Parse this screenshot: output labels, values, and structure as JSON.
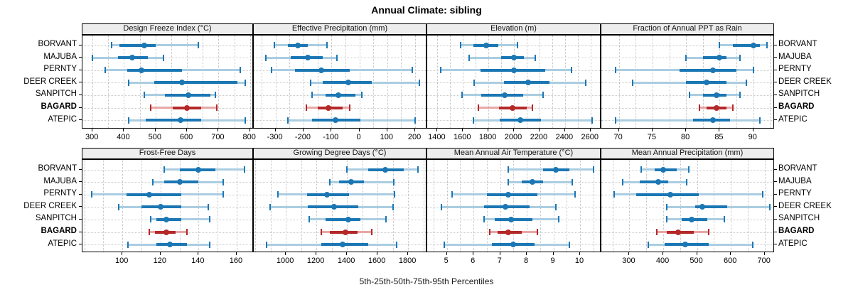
{
  "title": "Annual Climate: sibling",
  "caption": "5th-25th-50th-75th-95th Percentiles",
  "stations": [
    "BORVANT",
    "MAJUBA",
    "PERNTY",
    "DEER CREEK",
    "SANPITCH",
    "BAGARD",
    "ATEPIC"
  ],
  "highlight_station": "BAGARD",
  "colors": {
    "series": "#1b77b4",
    "series_light": "#aacde2",
    "highlight": "#b42828",
    "highlight_light": "#e9a6a6",
    "strip_bg": "#ededed",
    "grid": "#c9c9c9",
    "border": "#000000"
  },
  "chart_data": [
    {
      "type": "dot-interval",
      "title": "Design Freeze Index (°C)",
      "percentiles": [
        5,
        25,
        50,
        75,
        95
      ],
      "xlim": [
        268,
        812
      ],
      "ticks": [
        300,
        400,
        500,
        600,
        700,
        800
      ],
      "minor_step": 50,
      "grid": true,
      "series": [
        {
          "name": "BORVANT",
          "values": [
            360,
            385,
            465,
            500,
            635
          ]
        },
        {
          "name": "MAJUBA",
          "values": [
            300,
            380,
            425,
            475,
            525
          ]
        },
        {
          "name": "PERNTY",
          "values": [
            340,
            410,
            455,
            585,
            770
          ]
        },
        {
          "name": "DEER CREEK",
          "values": [
            415,
            495,
            585,
            760,
            785
          ]
        },
        {
          "name": "SANPITCH",
          "values": [
            465,
            530,
            605,
            675,
            690
          ]
        },
        {
          "name": "BAGARD",
          "values": [
            485,
            555,
            600,
            645,
            695
          ]
        },
        {
          "name": "ATEPIC",
          "values": [
            415,
            470,
            580,
            645,
            785
          ]
        }
      ]
    },
    {
      "type": "dot-interval",
      "title": "Effective Precipitation (mm)",
      "percentiles": [
        5,
        25,
        50,
        75,
        95
      ],
      "xlim": [
        -378,
        243
      ],
      "ticks": [
        -300,
        -200,
        -100,
        0,
        100,
        200
      ],
      "minor_step": 50,
      "grid": true,
      "series": [
        {
          "name": "BORVANT",
          "values": [
            -305,
            -255,
            -220,
            -185,
            -115
          ]
        },
        {
          "name": "MAJUBA",
          "values": [
            -335,
            -245,
            -185,
            -130,
            -80
          ]
        },
        {
          "name": "PERNTY",
          "values": [
            -315,
            -230,
            -135,
            -35,
            190
          ]
        },
        {
          "name": "DEER CREEK",
          "values": [
            -175,
            -130,
            -40,
            45,
            215
          ]
        },
        {
          "name": "SANPITCH",
          "values": [
            -170,
            -120,
            -75,
            -15,
            10
          ]
        },
        {
          "name": "BAGARD",
          "values": [
            -190,
            -150,
            -110,
            -60,
            -35
          ]
        },
        {
          "name": "ATEPIC",
          "values": [
            -255,
            -170,
            -85,
            5,
            200
          ]
        }
      ]
    },
    {
      "type": "dot-interval",
      "title": "Elevation (m)",
      "percentiles": [
        5,
        25,
        50,
        75,
        95
      ],
      "xlim": [
        1320,
        2685
      ],
      "ticks": [
        1400,
        1600,
        1800,
        2000,
        2200,
        2400,
        2600
      ],
      "minor_step": 100,
      "grid": true,
      "series": [
        {
          "name": "BORVANT",
          "values": [
            1580,
            1680,
            1780,
            1875,
            2025
          ]
        },
        {
          "name": "MAJUBA",
          "values": [
            1650,
            1900,
            2000,
            2075,
            2165
          ]
        },
        {
          "name": "PERNTY",
          "values": [
            1425,
            1740,
            2000,
            2245,
            2450
          ]
        },
        {
          "name": "DEER CREEK",
          "values": [
            1690,
            1920,
            2110,
            2280,
            2560
          ]
        },
        {
          "name": "SANPITCH",
          "values": [
            1595,
            1745,
            1930,
            2070,
            2230
          ]
        },
        {
          "name": "BAGARD",
          "values": [
            1720,
            1880,
            1990,
            2100,
            2145
          ]
        },
        {
          "name": "ATEPIC",
          "values": [
            1680,
            1890,
            2050,
            2210,
            2610
          ]
        }
      ]
    },
    {
      "type": "dot-interval",
      "title": "Fraction of Annual PPT as Rain",
      "percentiles": [
        5,
        25,
        50,
        75,
        95
      ],
      "xlim": [
        67.4,
        93.2
      ],
      "ticks": [
        70,
        75,
        80,
        85,
        90
      ],
      "minor_step": 2.5,
      "grid": true,
      "series": [
        {
          "name": "BORVANT",
          "values": [
            85,
            87,
            90,
            91,
            92
          ]
        },
        {
          "name": "MAJUBA",
          "values": [
            80,
            82.5,
            85,
            86,
            88
          ]
        },
        {
          "name": "PERNTY",
          "values": [
            69.5,
            79,
            84,
            87.5,
            90
          ]
        },
        {
          "name": "DEER CREEK",
          "values": [
            72,
            80,
            83,
            86,
            89
          ]
        },
        {
          "name": "SANPITCH",
          "values": [
            80.5,
            82.5,
            84.5,
            86,
            88
          ]
        },
        {
          "name": "BAGARD",
          "values": [
            82,
            83,
            84.5,
            86,
            87
          ]
        },
        {
          "name": "ATEPIC",
          "values": [
            69.5,
            81,
            84,
            86.5,
            91
          ]
        }
      ]
    },
    {
      "type": "dot-interval",
      "title": "Frost-Free Days",
      "percentiles": [
        5,
        25,
        50,
        75,
        95
      ],
      "xlim": [
        79,
        169
      ],
      "ticks": [
        100,
        120,
        140,
        160
      ],
      "minor_step": 10,
      "grid": true,
      "series": [
        {
          "name": "BORVANT",
          "values": [
            122,
            130,
            140,
            149,
            164
          ]
        },
        {
          "name": "MAJUBA",
          "values": [
            116,
            122,
            130,
            140,
            153
          ]
        },
        {
          "name": "PERNTY",
          "values": [
            84,
            102,
            114,
            131,
            153
          ]
        },
        {
          "name": "DEER CREEK",
          "values": [
            98,
            110,
            120,
            131,
            145
          ]
        },
        {
          "name": "SANPITCH",
          "values": [
            115,
            118,
            123,
            131,
            146
          ]
        },
        {
          "name": "BAGARD",
          "values": [
            114,
            117,
            123,
            128,
            134
          ]
        },
        {
          "name": "ATEPIC",
          "values": [
            103,
            118,
            125,
            134,
            146
          ]
        }
      ]
    },
    {
      "type": "dot-interval",
      "title": "Growing Degree Days (°C)",
      "percentiles": [
        5,
        25,
        50,
        75,
        95
      ],
      "xlim": [
        790,
        1925
      ],
      "ticks": [
        1000,
        1200,
        1400,
        1600,
        1800
      ],
      "minor_step": 100,
      "grid": true,
      "series": [
        {
          "name": "BORVANT",
          "values": [
            1400,
            1540,
            1650,
            1770,
            1865
          ]
        },
        {
          "name": "MAJUBA",
          "values": [
            1290,
            1350,
            1425,
            1510,
            1705
          ]
        },
        {
          "name": "PERNTY",
          "values": [
            950,
            1140,
            1270,
            1415,
            1710
          ]
        },
        {
          "name": "DEER CREEK",
          "values": [
            895,
            1145,
            1315,
            1475,
            1700
          ]
        },
        {
          "name": "SANPITCH",
          "values": [
            1155,
            1260,
            1410,
            1490,
            1655
          ]
        },
        {
          "name": "BAGARD",
          "values": [
            1230,
            1290,
            1390,
            1470,
            1560
          ]
        },
        {
          "name": "ATEPIC",
          "values": [
            875,
            1230,
            1370,
            1540,
            1725
          ]
        }
      ]
    },
    {
      "type": "dot-interval",
      "title": "Mean Annual Air Temperature (°C)",
      "percentiles": [
        5,
        25,
        50,
        75,
        95
      ],
      "xlim": [
        4.26,
        10.8
      ],
      "ticks": [
        5,
        6,
        7,
        8,
        9,
        10
      ],
      "minor_step": 0.5,
      "grid": true,
      "series": [
        {
          "name": "BORVANT",
          "values": [
            7.3,
            8.6,
            9.1,
            9.6,
            10.5
          ]
        },
        {
          "name": "MAJUBA",
          "values": [
            7.3,
            7.8,
            8.2,
            8.6,
            9.7
          ]
        },
        {
          "name": "PERNTY",
          "values": [
            5.2,
            6.5,
            7.3,
            8.4,
            9.8
          ]
        },
        {
          "name": "DEER CREEK",
          "values": [
            4.8,
            6.4,
            7.2,
            8.1,
            9.1
          ]
        },
        {
          "name": "SANPITCH",
          "values": [
            6.4,
            6.8,
            7.4,
            8.2,
            9.2
          ]
        },
        {
          "name": "BAGARD",
          "values": [
            6.6,
            6.9,
            7.3,
            7.8,
            8.4
          ]
        },
        {
          "name": "ATEPIC",
          "values": [
            4.9,
            6.7,
            7.5,
            8.3,
            9.6
          ]
        }
      ]
    },
    {
      "type": "dot-interval",
      "title": "Mean Annual Precipitation (mm)",
      "percentiles": [
        5,
        25,
        50,
        75,
        95
      ],
      "xlim": [
        217,
        730
      ],
      "ticks": [
        300,
        400,
        500,
        600,
        700
      ],
      "minor_step": 50,
      "grid": true,
      "series": [
        {
          "name": "BORVANT",
          "values": [
            335,
            375,
            400,
            440,
            475
          ]
        },
        {
          "name": "MAJUBA",
          "values": [
            280,
            330,
            385,
            415,
            470
          ]
        },
        {
          "name": "PERNTY",
          "values": [
            255,
            320,
            420,
            505,
            695
          ]
        },
        {
          "name": "DEER CREEK",
          "values": [
            410,
            495,
            515,
            590,
            715
          ]
        },
        {
          "name": "SANPITCH",
          "values": [
            410,
            455,
            485,
            530,
            580
          ]
        },
        {
          "name": "BAGARD",
          "values": [
            380,
            410,
            445,
            490,
            535
          ]
        },
        {
          "name": "ATEPIC",
          "values": [
            355,
            405,
            465,
            535,
            665
          ]
        }
      ]
    }
  ]
}
